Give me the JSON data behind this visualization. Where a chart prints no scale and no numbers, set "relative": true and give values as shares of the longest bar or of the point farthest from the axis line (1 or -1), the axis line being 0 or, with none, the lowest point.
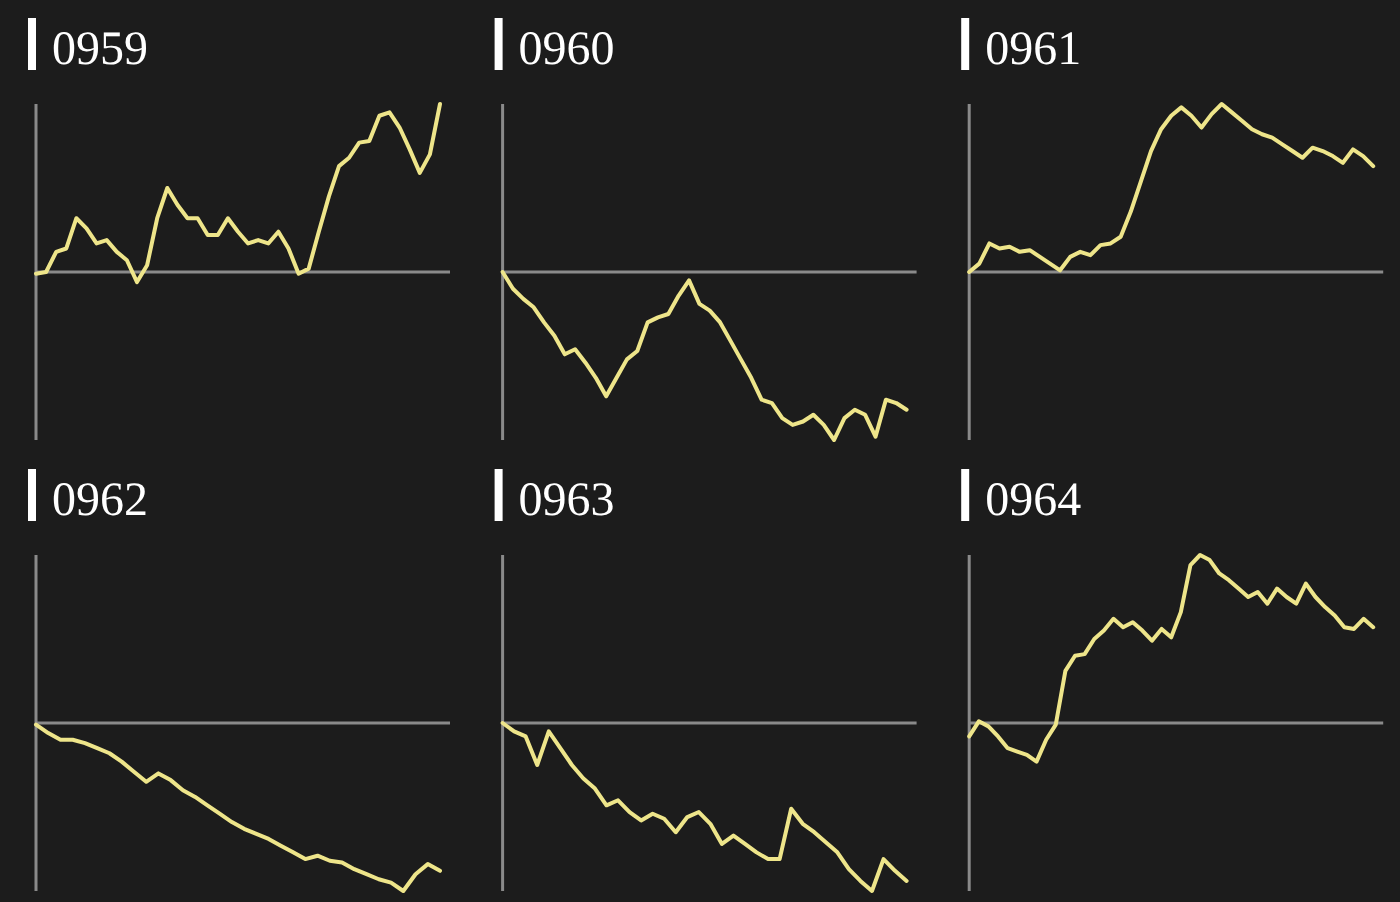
{
  "chart_data": [
    {
      "type": "line",
      "title": "0959",
      "relative": true,
      "color": "#eee58a",
      "categories": [
        null,
        null,
        null,
        null,
        null,
        null,
        null,
        null,
        null,
        null,
        null,
        null,
        null,
        null,
        null,
        null,
        null,
        null,
        null,
        null,
        null,
        null,
        null,
        null,
        null,
        null,
        null,
        null,
        null,
        null,
        null,
        null,
        null,
        null,
        null,
        null,
        null,
        null,
        null,
        null,
        null
      ],
      "values": [
        -0.01,
        0,
        0.12,
        0.14,
        0.32,
        0.26,
        0.17,
        0.19,
        0.12,
        0.07,
        -0.06,
        0.04,
        0.32,
        0.5,
        0.4,
        0.32,
        0.32,
        0.22,
        0.22,
        0.32,
        0.24,
        0.17,
        0.19,
        0.17,
        0.24,
        0.14,
        -0.01,
        0.02,
        0.24,
        0.45,
        0.63,
        0.68,
        0.77,
        0.78,
        0.93,
        0.95,
        0.86,
        0.73,
        0.59,
        0.7,
        1
      ]
    },
    {
      "type": "line",
      "title": "0960",
      "relative": true,
      "color": "#eee58a",
      "categories": [
        null,
        null,
        null,
        null,
        null,
        null,
        null,
        null,
        null,
        null,
        null,
        null,
        null,
        null,
        null,
        null,
        null,
        null,
        null,
        null,
        null,
        null,
        null,
        null,
        null,
        null,
        null,
        null,
        null,
        null,
        null,
        null,
        null,
        null,
        null,
        null,
        null,
        null,
        null,
        null
      ],
      "values": [
        0,
        -0.1,
        -0.16,
        -0.21,
        -0.3,
        -0.38,
        -0.49,
        -0.46,
        -0.54,
        -0.63,
        -0.74,
        -0.63,
        -0.52,
        -0.47,
        -0.3,
        -0.27,
        -0.25,
        -0.14,
        -0.05,
        -0.19,
        -0.23,
        -0.3,
        -0.41,
        -0.52,
        -0.63,
        -0.76,
        -0.78,
        -0.87,
        -0.91,
        -0.89,
        -0.85,
        -0.91,
        -1,
        -0.87,
        -0.82,
        -0.85,
        -0.98,
        -0.76,
        -0.78,
        -0.82
      ]
    },
    {
      "type": "line",
      "title": "0961",
      "relative": true,
      "color": "#eee58a",
      "categories": [
        null,
        null,
        null,
        null,
        null,
        null,
        null,
        null,
        null,
        null,
        null,
        null,
        null,
        null,
        null,
        null,
        null,
        null,
        null,
        null,
        null,
        null,
        null,
        null,
        null,
        null,
        null,
        null,
        null,
        null,
        null,
        null,
        null,
        null,
        null,
        null,
        null,
        null,
        null,
        null,
        null
      ],
      "values": [
        0,
        0.05,
        0.17,
        0.14,
        0.15,
        0.12,
        0.13,
        0.09,
        0.05,
        0.01,
        0.09,
        0.12,
        0.1,
        0.16,
        0.17,
        0.21,
        0.36,
        0.54,
        0.72,
        0.85,
        0.93,
        0.98,
        0.93,
        0.86,
        0.94,
        1,
        0.95,
        0.9,
        0.85,
        0.82,
        0.8,
        0.76,
        0.72,
        0.68,
        0.74,
        0.72,
        0.69,
        0.65,
        0.73,
        0.69,
        0.63
      ]
    },
    {
      "type": "line",
      "title": "0962",
      "relative": true,
      "color": "#eee58a",
      "categories": [
        null,
        null,
        null,
        null,
        null,
        null,
        null,
        null,
        null,
        null,
        null,
        null,
        null,
        null,
        null,
        null,
        null,
        null,
        null,
        null,
        null,
        null,
        null,
        null,
        null,
        null,
        null,
        null,
        null,
        null,
        null,
        null,
        null,
        null
      ],
      "values": [
        -0.01,
        -0.06,
        -0.1,
        -0.1,
        -0.12,
        -0.15,
        -0.18,
        -0.23,
        -0.29,
        -0.35,
        -0.3,
        -0.34,
        -0.4,
        -0.44,
        -0.49,
        -0.54,
        -0.59,
        -0.63,
        -0.66,
        -0.69,
        -0.73,
        -0.77,
        -0.81,
        -0.79,
        -0.82,
        -0.83,
        -0.87,
        -0.9,
        -0.93,
        -0.95,
        -1,
        -0.9,
        -0.84,
        -0.88
      ]
    },
    {
      "type": "line",
      "title": "0963",
      "relative": true,
      "color": "#eee58a",
      "categories": [
        null,
        null,
        null,
        null,
        null,
        null,
        null,
        null,
        null,
        null,
        null,
        null,
        null,
        null,
        null,
        null,
        null,
        null,
        null,
        null,
        null,
        null,
        null,
        null,
        null,
        null,
        null,
        null,
        null,
        null,
        null,
        null,
        null,
        null,
        null,
        null
      ],
      "values": [
        0,
        -0.05,
        -0.08,
        -0.25,
        -0.05,
        -0.15,
        -0.25,
        -0.33,
        -0.39,
        -0.49,
        -0.46,
        -0.53,
        -0.58,
        -0.54,
        -0.57,
        -0.65,
        -0.56,
        -0.53,
        -0.6,
        -0.72,
        -0.67,
        -0.72,
        -0.77,
        -0.81,
        -0.81,
        -0.51,
        -0.6,
        -0.65,
        -0.71,
        -0.77,
        -0.87,
        -0.94,
        -1,
        -0.81,
        -0.88,
        -0.94
      ]
    },
    {
      "type": "line",
      "title": "0964",
      "relative": true,
      "color": "#eee58a",
      "categories": [
        null,
        null,
        null,
        null,
        null,
        null,
        null,
        null,
        null,
        null,
        null,
        null,
        null,
        null,
        null,
        null,
        null,
        null,
        null,
        null,
        null,
        null,
        null,
        null,
        null,
        null,
        null,
        null,
        null,
        null,
        null,
        null,
        null,
        null,
        null,
        null,
        null,
        null,
        null,
        null,
        null,
        null,
        null
      ],
      "values": [
        -0.08,
        0.01,
        -0.02,
        -0.08,
        -0.15,
        -0.17,
        -0.19,
        -0.23,
        -0.1,
        -0.01,
        0.31,
        0.4,
        0.41,
        0.5,
        0.55,
        0.62,
        0.57,
        0.6,
        0.55,
        0.49,
        0.56,
        0.51,
        0.66,
        0.94,
        1,
        0.97,
        0.89,
        0.85,
        0.8,
        0.75,
        0.78,
        0.71,
        0.8,
        0.75,
        0.71,
        0.83,
        0.75,
        0.69,
        0.64,
        0.57,
        0.56,
        0.62,
        0.57
      ]
    }
  ]
}
